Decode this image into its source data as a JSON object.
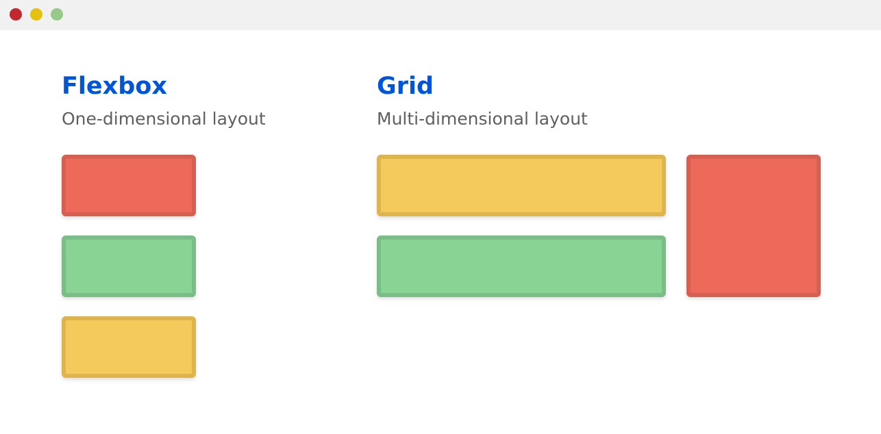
{
  "window": {
    "controls": [
      {
        "name": "close",
        "color": "#c1292e"
      },
      {
        "name": "minimize",
        "color": "#e3c211"
      },
      {
        "name": "maximize",
        "color": "#97c988"
      }
    ]
  },
  "flexbox": {
    "title": "Flexbox",
    "subtitle": "One-dimensional layout",
    "boxes": [
      {
        "color": "red",
        "fill": "#ed6a5a",
        "border": "#d55f51"
      },
      {
        "color": "green",
        "fill": "#89d395",
        "border": "#7bbd86"
      },
      {
        "color": "yellow",
        "fill": "#f4ca5c",
        "border": "#ddb44d"
      }
    ]
  },
  "grid": {
    "title": "Grid",
    "subtitle": "Multi-dimensional layout",
    "boxes": [
      {
        "color": "yellow",
        "fill": "#f4ca5c",
        "border": "#ddb44d"
      },
      {
        "color": "green",
        "fill": "#89d395",
        "border": "#7bbd86"
      },
      {
        "color": "red",
        "fill": "#ed6a5a",
        "border": "#d55f51"
      }
    ]
  },
  "accent": "#0055d9"
}
